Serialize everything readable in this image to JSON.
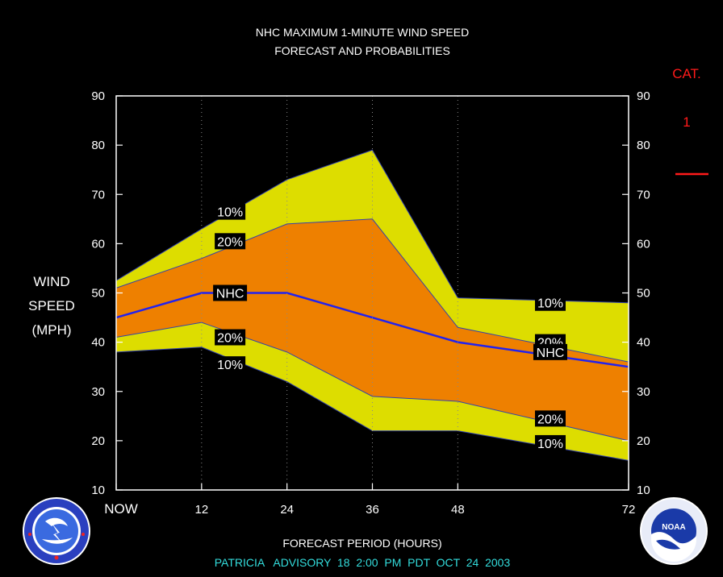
{
  "title": "NHC MAXIMUM 1-MINUTE WIND SPEED",
  "subtitle": "FORECAST AND PROBABILITIES",
  "category": {
    "label": "CAT.",
    "value": "1",
    "color": "#ff1a1a"
  },
  "colors": {
    "background": "#000000",
    "outer_band": "#dddd00",
    "inner_band": "#ee8000",
    "nhc_line": "#2222ee",
    "text": "#ffffff",
    "advisory": "#33dddd"
  },
  "icons": {
    "left_logo": "nws-logo",
    "right_logo": "noaa-logo"
  },
  "footer": {
    "xlabel": "FORECAST PERIOD (HOURS)",
    "advisory": "PATRICIA   ADVISORY  18  2:00  PM  PDT  OCT  24  2003"
  },
  "chart_data": {
    "type": "area",
    "title": "NHC MAXIMUM 1-MINUTE WIND SPEED",
    "subtitle": "FORECAST AND PROBABILITIES",
    "xlabel": "FORECAST PERIOD (HOURS)",
    "ylabel": [
      "WIND",
      "SPEED",
      "(MPH)"
    ],
    "xlim": [
      0,
      72
    ],
    "ylim": [
      10,
      90
    ],
    "yticks": [
      10,
      20,
      30,
      40,
      50,
      60,
      70,
      80,
      90
    ],
    "xticks": [
      {
        "value": 0,
        "label": "NOW"
      },
      {
        "value": 12,
        "label": "12"
      },
      {
        "value": 24,
        "label": "24"
      },
      {
        "value": 36,
        "label": "36"
      },
      {
        "value": 48,
        "label": "48"
      },
      {
        "value": 72,
        "label": "72"
      }
    ],
    "grid": "vertical dotted",
    "x": [
      0,
      12,
      24,
      36,
      48,
      72
    ],
    "series": [
      {
        "name": "10%",
        "role": "outer_upper",
        "values": [
          52.5,
          63,
          73,
          79,
          49,
          48
        ]
      },
      {
        "name": "20%",
        "role": "inner_upper",
        "values": [
          51,
          57,
          64,
          65,
          43,
          36
        ]
      },
      {
        "name": "NHC",
        "role": "nhc",
        "values": [
          45,
          50,
          50,
          45,
          40,
          35
        ]
      },
      {
        "name": "20%",
        "role": "inner_lower",
        "values": [
          41,
          44,
          38,
          29,
          28,
          20
        ]
      },
      {
        "name": "10%",
        "role": "outer_lower",
        "values": [
          38,
          39,
          32,
          22,
          22,
          16
        ]
      }
    ],
    "annotations": [
      {
        "text": "10%",
        "x": 16,
        "y": 66.5
      },
      {
        "text": "20%",
        "x": 16,
        "y": 60.5
      },
      {
        "text": "NHC",
        "x": 16,
        "y": 50
      },
      {
        "text": "20%",
        "x": 16,
        "y": 41
      },
      {
        "text": "10%",
        "x": 16,
        "y": 35.5
      },
      {
        "text": "10%",
        "x": 61,
        "y": 48
      },
      {
        "text": "20%",
        "x": 61,
        "y": 40
      },
      {
        "text": "NHC",
        "x": 61,
        "y": 38
      },
      {
        "text": "20%",
        "x": 61,
        "y": 24.5
      },
      {
        "text": "10%",
        "x": 61,
        "y": 19.5
      }
    ]
  }
}
